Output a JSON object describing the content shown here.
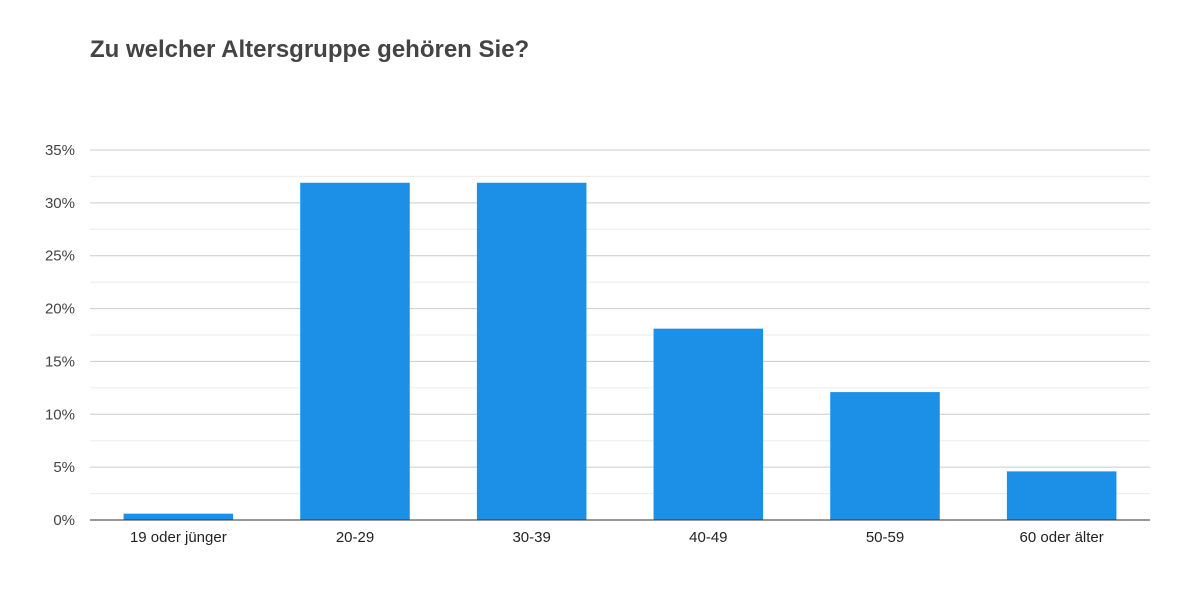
{
  "chart_data": {
    "type": "bar",
    "title": "Zu welcher Altersgruppe gehören Sie?",
    "xlabel": "",
    "ylabel": "",
    "categories": [
      "19 oder jünger",
      "20-29",
      "30-39",
      "40-49",
      "50-59",
      "60 oder älter"
    ],
    "values": [
      0.6,
      31.9,
      31.9,
      18.1,
      12.1,
      4.6
    ],
    "y_unit": "%",
    "ylim": [
      0,
      35
    ],
    "y_ticks": [
      0,
      5,
      10,
      15,
      20,
      25,
      30,
      35
    ],
    "y_tick_labels": [
      "0%",
      "5%",
      "10%",
      "15%",
      "20%",
      "25%",
      "30%",
      "35%"
    ],
    "grid": true,
    "legend": "none",
    "bar_color": "#1c90e6",
    "gridline_color": "#cccccc",
    "minor_gridline_color": "#ebebeb",
    "axis_color": "#333333"
  }
}
